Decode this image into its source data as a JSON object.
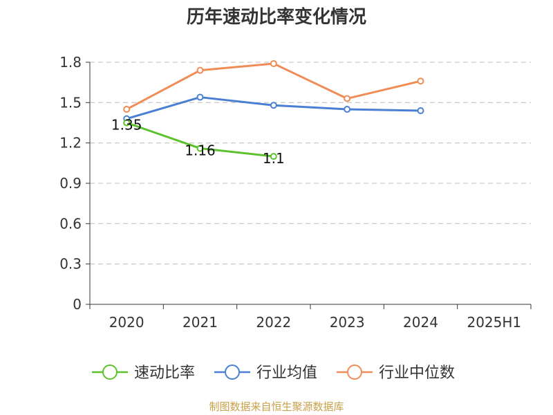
{
  "chart_data": {
    "type": "line",
    "title": "历年速动比率变化情况",
    "categories": [
      "2020",
      "2021",
      "2022",
      "2023",
      "2024",
      "2025H1"
    ],
    "ylim": [
      0,
      1.8
    ],
    "yticks": [
      "0",
      "0.3",
      "0.6",
      "0.9",
      "1.2",
      "1.5",
      "1.8"
    ],
    "grid": true,
    "legend_position": "bottom",
    "series": [
      {
        "name": "速动比率",
        "color": "#5bc22c",
        "values": [
          1.35,
          1.16,
          1.1,
          null,
          null,
          null
        ],
        "labels": [
          "1.35",
          "1.16",
          "1.1"
        ]
      },
      {
        "name": "行业均值",
        "color": "#4a7fd4",
        "values": [
          1.38,
          1.54,
          1.48,
          1.45,
          1.44,
          null
        ]
      },
      {
        "name": "行业中位数",
        "color": "#f08c55",
        "values": [
          1.45,
          1.74,
          1.79,
          1.53,
          1.66,
          null
        ]
      }
    ]
  },
  "source_text": "制图数据来自恒生聚源数据库"
}
